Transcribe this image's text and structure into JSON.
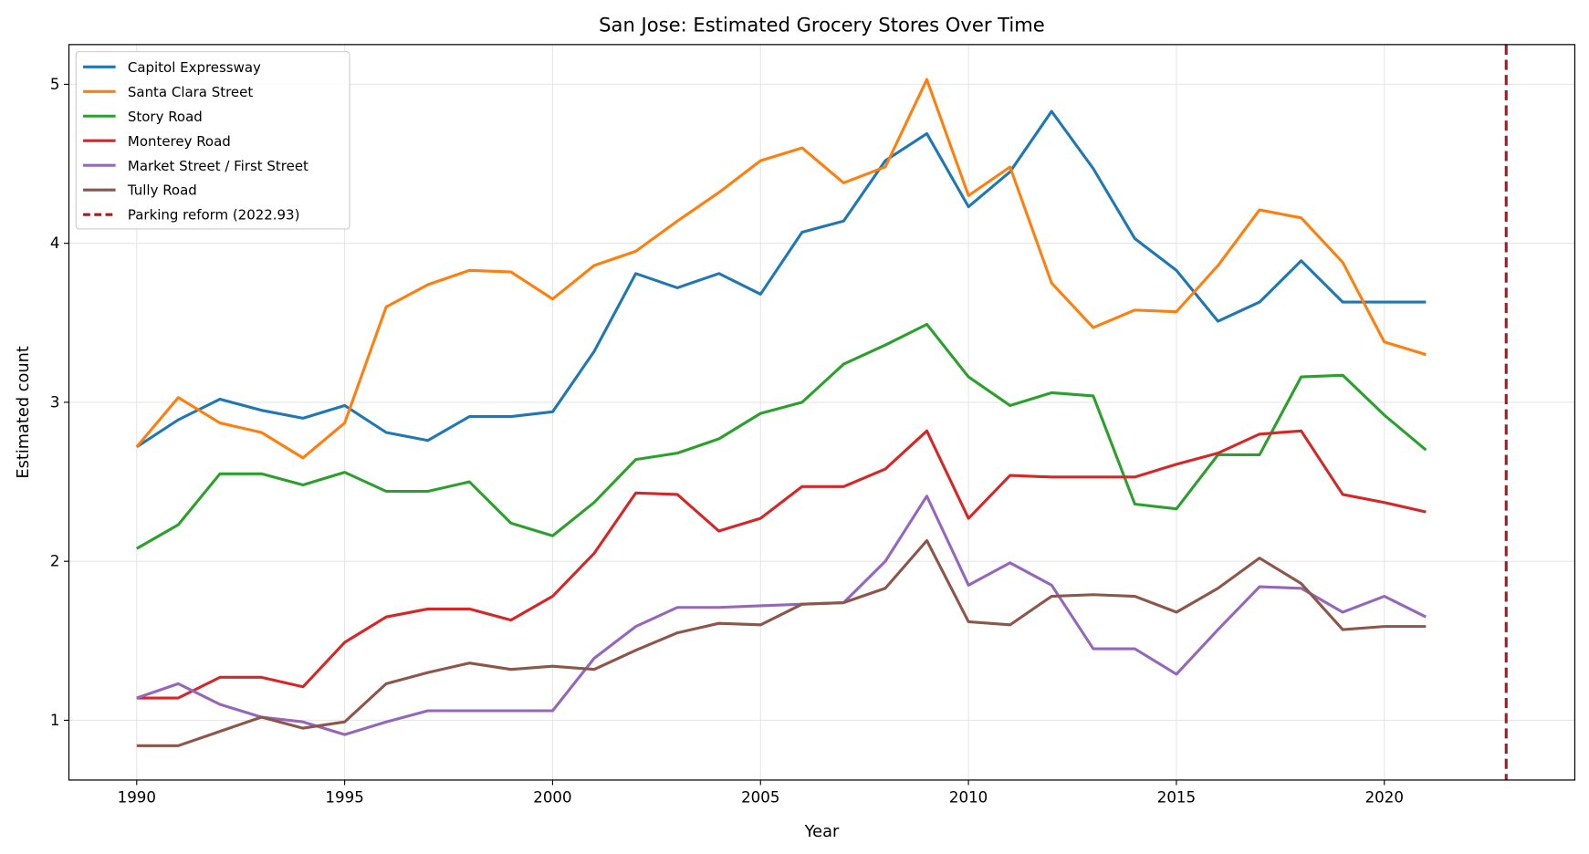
{
  "chart_data": {
    "type": "line",
    "title": "San Jose: Estimated Grocery Stores Over Time",
    "xlabel": "Year",
    "ylabel": "Estimated count",
    "xlim": [
      1988.37,
      2024.58
    ],
    "ylim": [
      0.624,
      5.25
    ],
    "xticks": [
      1990,
      1995,
      2000,
      2005,
      2010,
      2015,
      2020
    ],
    "yticks": [
      1,
      2,
      3,
      4,
      5
    ],
    "grid": true,
    "legend_position": "top-left",
    "x": [
      1990,
      1991,
      1992,
      1993,
      1994,
      1995,
      1996,
      1997,
      1998,
      1999,
      2000,
      2001,
      2002,
      2003,
      2004,
      2005,
      2006,
      2007,
      2008,
      2009,
      2010,
      2011,
      2012,
      2013,
      2014,
      2015,
      2016,
      2017,
      2018,
      2019,
      2020,
      2021
    ],
    "series": [
      {
        "name": "Capitol Expressway",
        "color": "#1f77b4",
        "values": [
          2.72,
          2.89,
          3.02,
          2.95,
          2.9,
          2.98,
          2.81,
          2.76,
          2.91,
          2.91,
          2.94,
          3.32,
          3.81,
          3.72,
          3.81,
          3.68,
          4.07,
          4.14,
          4.52,
          4.69,
          4.23,
          4.45,
          4.83,
          4.47,
          4.03,
          3.83,
          3.51,
          3.63,
          3.89,
          3.63,
          3.63,
          3.63
        ]
      },
      {
        "name": "Santa Clara Street",
        "color": "#ff7f0e",
        "values": [
          2.72,
          3.03,
          2.87,
          2.81,
          2.65,
          2.87,
          3.6,
          3.74,
          3.83,
          3.82,
          3.65,
          3.86,
          3.95,
          4.14,
          4.32,
          4.52,
          4.6,
          4.38,
          4.48,
          5.03,
          4.3,
          4.48,
          3.75,
          3.47,
          3.58,
          3.57,
          3.86,
          4.21,
          4.16,
          3.88,
          3.38,
          3.3
        ]
      },
      {
        "name": "Story Road",
        "color": "#2ca02c",
        "values": [
          2.08,
          2.23,
          2.55,
          2.55,
          2.48,
          2.56,
          2.44,
          2.44,
          2.5,
          2.24,
          2.16,
          2.37,
          2.64,
          2.68,
          2.77,
          2.93,
          3.0,
          3.24,
          3.36,
          3.49,
          3.16,
          2.98,
          3.06,
          3.04,
          2.36,
          2.33,
          2.67,
          2.67,
          3.16,
          3.17,
          2.92,
          2.7
        ]
      },
      {
        "name": "Monterey Road",
        "color": "#d62728",
        "values": [
          1.14,
          1.14,
          1.27,
          1.27,
          1.21,
          1.49,
          1.65,
          1.7,
          1.7,
          1.63,
          1.78,
          2.05,
          2.43,
          2.42,
          2.19,
          2.27,
          2.47,
          2.47,
          2.58,
          2.82,
          2.27,
          2.54,
          2.53,
          2.53,
          2.53,
          2.61,
          2.68,
          2.8,
          2.82,
          2.42,
          2.37,
          2.31
        ]
      },
      {
        "name": "Market Street / First Street",
        "color": "#9467bd",
        "values": [
          1.14,
          1.23,
          1.1,
          1.02,
          0.99,
          0.91,
          0.99,
          1.06,
          1.06,
          1.06,
          1.06,
          1.39,
          1.59,
          1.71,
          1.71,
          1.72,
          1.73,
          1.74,
          2.0,
          2.41,
          1.85,
          1.99,
          1.85,
          1.45,
          1.45,
          1.29,
          1.57,
          1.84,
          1.83,
          1.68,
          1.78,
          1.65
        ]
      },
      {
        "name": "Tully Road",
        "color": "#8c564b",
        "values": [
          0.84,
          0.84,
          0.93,
          1.02,
          0.95,
          0.99,
          1.23,
          1.3,
          1.36,
          1.32,
          1.34,
          1.32,
          1.44,
          1.55,
          1.61,
          1.6,
          1.73,
          1.74,
          1.83,
          2.13,
          1.62,
          1.6,
          1.78,
          1.79,
          1.78,
          1.68,
          1.83,
          2.02,
          1.86,
          1.57,
          1.59,
          1.59
        ]
      }
    ],
    "annotations": [
      {
        "type": "vline",
        "x": 2022.93,
        "label": "Parking reform (2022.93)",
        "color": "#a11d21",
        "style": "dashed"
      }
    ]
  }
}
